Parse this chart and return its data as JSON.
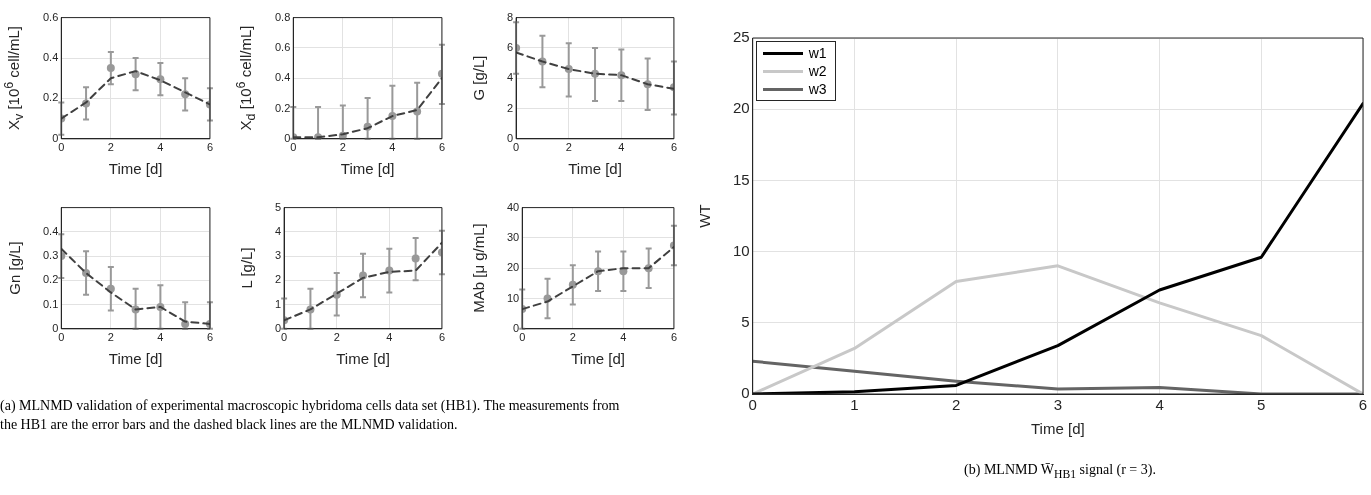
{
  "chart_data": [
    {
      "type": "line",
      "x": [
        0,
        1,
        2,
        3,
        4,
        5,
        6
      ],
      "xlabel": "Time [d]",
      "ylabel": "X$_{v}$ [10$^{6}$ cell/mL]",
      "xlim": [
        0,
        6
      ],
      "xticks": [
        0,
        2,
        4,
        6
      ],
      "ylim": [
        0,
        0.6
      ],
      "yticks": [
        0,
        0.2,
        0.4,
        0.6
      ],
      "grid": true,
      "annotations": [
        "(a) MLNMD validation of experimental macroscopic hybridoma cells data set (HB1). The measurements from the HB1 are the error bars and the dashed black lines are the MLNMD validation."
      ],
      "series": [
        {
          "type": "scatter",
          "color": "#999999",
          "marker": "circle",
          "values": [
            0.1,
            0.175,
            0.35,
            0.32,
            0.295,
            0.22,
            0.17
          ],
          "errors": [
            [
              0.02,
              0.18
            ],
            [
              0.095,
              0.255
            ],
            [
              0.27,
              0.43
            ],
            [
              0.24,
              0.4
            ],
            [
              0.215,
              0.375
            ],
            [
              0.14,
              0.3
            ],
            [
              0.09,
              0.25
            ]
          ]
        },
        {
          "type": "line",
          "color": "#404040",
          "line_style": "dashed",
          "values": [
            0.1,
            0.18,
            0.3,
            0.335,
            0.29,
            0.23,
            0.17
          ]
        }
      ]
    },
    {
      "type": "line",
      "x": [
        0,
        1,
        2,
        3,
        4,
        5,
        6
      ],
      "xlabel": "Time [d]",
      "ylabel": "X$_{d}$ [10$^{6}$ cell/mL]",
      "xlim": [
        0,
        6
      ],
      "xticks": [
        0,
        2,
        4,
        6
      ],
      "ylim": [
        0,
        0.8
      ],
      "yticks": [
        0,
        0.2,
        0.4,
        0.6,
        0.8
      ],
      "grid": true,
      "series": [
        {
          "type": "scatter",
          "color": "#999999",
          "marker": "circle",
          "values": [
            0.01,
            0.01,
            0.02,
            0.08,
            0.15,
            0.18,
            0.43
          ],
          "errors": [
            [
              0,
              0.21
            ],
            [
              0,
              0.21
            ],
            [
              0,
              0.22
            ],
            [
              0,
              0.27
            ],
            [
              0,
              0.35
            ],
            [
              0,
              0.37
            ],
            [
              0.23,
              0.62
            ]
          ]
        },
        {
          "type": "line",
          "color": "#404040",
          "line_style": "dashed",
          "values": [
            0.01,
            0.01,
            0.03,
            0.07,
            0.15,
            0.19,
            0.4
          ]
        }
      ]
    },
    {
      "type": "line",
      "x": [
        0,
        1,
        2,
        3,
        4,
        5,
        6
      ],
      "xlabel": "Time [d]",
      "ylabel": "G [g/L]",
      "xlim": [
        0,
        6
      ],
      "xticks": [
        0,
        2,
        4,
        6
      ],
      "ylim": [
        0,
        8
      ],
      "yticks": [
        0,
        2,
        4,
        6,
        8
      ],
      "grid": true,
      "series": [
        {
          "type": "scatter",
          "color": "#999999",
          "marker": "circle",
          "values": [
            6.0,
            5.1,
            4.6,
            4.3,
            4.2,
            3.6,
            3.4
          ],
          "errors": [
            [
              4.3,
              7.7
            ],
            [
              3.4,
              6.8
            ],
            [
              2.8,
              6.3
            ],
            [
              2.5,
              6.0
            ],
            [
              2.5,
              5.9
            ],
            [
              1.9,
              5.3
            ],
            [
              1.6,
              5.1
            ]
          ]
        },
        {
          "type": "line",
          "color": "#404040",
          "line_style": "dashed",
          "values": [
            5.7,
            5.1,
            4.6,
            4.3,
            4.2,
            3.6,
            3.3
          ]
        }
      ]
    },
    {
      "type": "line",
      "x": [
        0,
        1,
        2,
        3,
        4,
        5,
        6
      ],
      "xlabel": "Time [d]",
      "ylabel": "Gn [g/L]",
      "xlim": [
        0,
        6
      ],
      "xticks": [
        0,
        2,
        4,
        6
      ],
      "ylim": [
        0,
        0.5
      ],
      "yticks": [
        0,
        0.1,
        0.2,
        0.3,
        0.4
      ],
      "grid": true,
      "series": [
        {
          "type": "scatter",
          "color": "#999999",
          "marker": "circle",
          "values": [
            0.3,
            0.23,
            0.165,
            0.08,
            0.09,
            0.02,
            0.02
          ],
          "errors": [
            [
              0.21,
              0.39
            ],
            [
              0.14,
              0.32
            ],
            [
              0.075,
              0.255
            ],
            [
              0,
              0.165
            ],
            [
              0,
              0.18
            ],
            [
              0,
              0.11
            ],
            [
              0,
              0.11
            ]
          ]
        },
        {
          "type": "line",
          "color": "#404040",
          "line_style": "dashed",
          "values": [
            0.33,
            0.23,
            0.15,
            0.08,
            0.09,
            0.03,
            0.02
          ]
        }
      ]
    },
    {
      "type": "line",
      "x": [
        0,
        1,
        2,
        3,
        4,
        5,
        6
      ],
      "xlabel": "Time [d]",
      "ylabel": "L [g/L]",
      "xlim": [
        0,
        6
      ],
      "xticks": [
        0,
        2,
        4,
        6
      ],
      "ylim": [
        0,
        5
      ],
      "yticks": [
        0,
        1,
        2,
        3,
        4,
        5
      ],
      "grid": true,
      "series": [
        {
          "type": "scatter",
          "color": "#999999",
          "marker": "circle",
          "values": [
            0.35,
            0.8,
            1.4,
            2.2,
            2.4,
            2.9,
            3.15
          ],
          "errors": [
            [
              0,
              1.25
            ],
            [
              0,
              1.65
            ],
            [
              0.55,
              2.3
            ],
            [
              1.3,
              3.1
            ],
            [
              1.5,
              3.3
            ],
            [
              2.0,
              3.75
            ],
            [
              2.25,
              4.05
            ]
          ]
        },
        {
          "type": "line",
          "color": "#404040",
          "line_style": "dashed",
          "values": [
            0.35,
            0.8,
            1.45,
            2.1,
            2.35,
            2.4,
            3.55
          ]
        }
      ]
    },
    {
      "type": "line",
      "x": [
        0,
        1,
        2,
        3,
        4,
        5,
        6
      ],
      "xlabel": "Time [d]",
      "ylabel": "MAb [μ g/mL]",
      "xlim": [
        0,
        6
      ],
      "xticks": [
        0,
        2,
        4,
        6
      ],
      "ylim": [
        0,
        40
      ],
      "yticks": [
        0,
        10,
        20,
        30,
        40
      ],
      "grid": true,
      "series": [
        {
          "type": "scatter",
          "color": "#999999",
          "marker": "circle",
          "values": [
            6.5,
            10,
            14.5,
            19,
            19,
            20,
            27.5
          ],
          "errors": [
            [
              0,
              13
            ],
            [
              3.5,
              16.5
            ],
            [
              8,
              21
            ],
            [
              12.5,
              25.5
            ],
            [
              12.5,
              25.5
            ],
            [
              13.5,
              26.5
            ],
            [
              21,
              34
            ]
          ]
        },
        {
          "type": "line",
          "color": "#404040",
          "line_style": "dashed",
          "values": [
            6.5,
            9,
            14,
            19,
            20,
            20,
            27
          ]
        }
      ]
    },
    {
      "type": "line",
      "x": [
        0,
        1,
        2,
        3,
        4,
        5,
        6
      ],
      "xlabel": "Time [d]",
      "ylabel": "WT",
      "xlim": [
        0,
        6
      ],
      "xticks": [
        0,
        1,
        2,
        3,
        4,
        5,
        6
      ],
      "ylim": [
        0,
        25
      ],
      "yticks": [
        0,
        5,
        10,
        15,
        20,
        25
      ],
      "grid": true,
      "legend": "top left",
      "annotations": [
        "(b) MLNMD W̄$_{HB1}$ signal (r = 3)."
      ],
      "series": [
        {
          "name": "w1",
          "color": "#000000",
          "values": [
            0,
            0.15,
            0.6,
            3.4,
            7.3,
            9.6,
            20.4
          ]
        },
        {
          "name": "w2",
          "color": "#c8c8c8",
          "values": [
            0,
            3.2,
            7.9,
            9.0,
            6.4,
            4.1,
            0
          ]
        },
        {
          "name": "w3",
          "color": "#646464",
          "values": [
            2.3,
            1.6,
            0.9,
            0.35,
            0.45,
            0,
            0
          ]
        }
      ]
    }
  ]
}
